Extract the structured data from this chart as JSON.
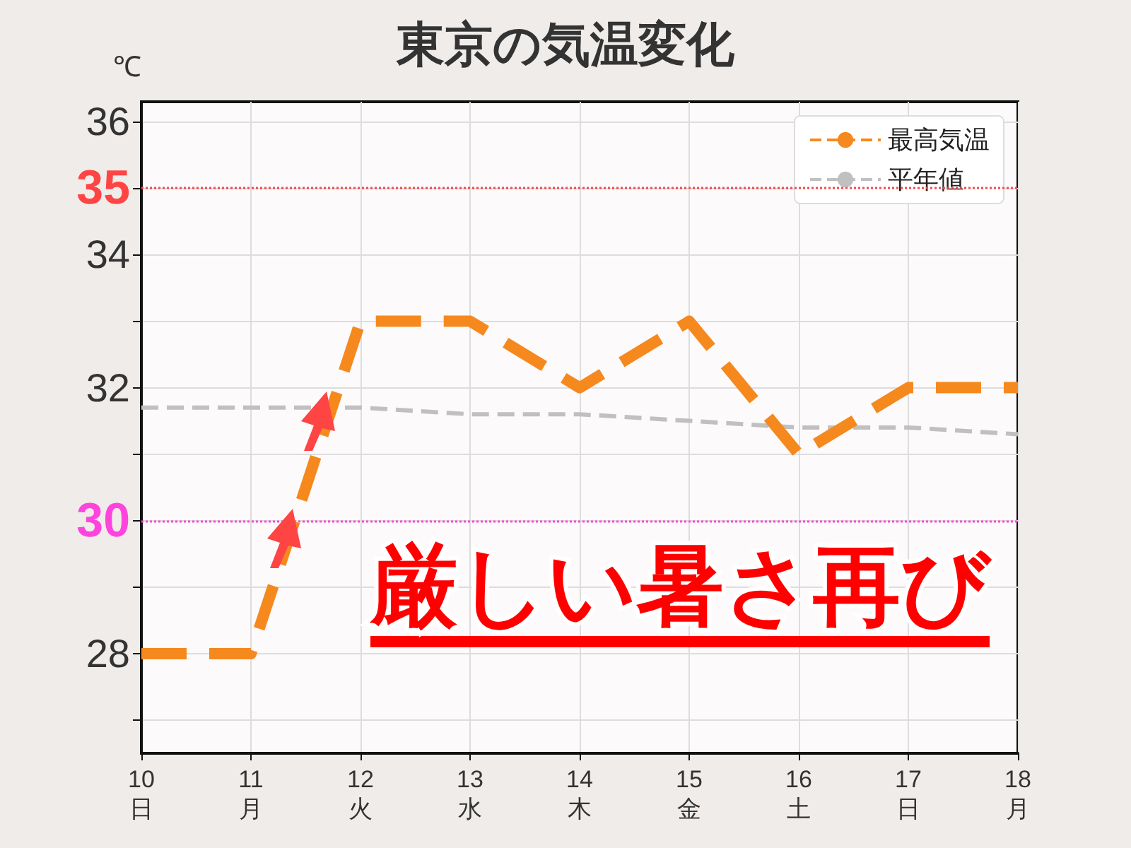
{
  "chart_data": {
    "type": "line",
    "title": "東京の気温変化",
    "ylabel": "℃",
    "categories": [
      "10\n日",
      "11\n月",
      "12\n火",
      "13\n水",
      "14\n木",
      "15\n金",
      "16\n土",
      "17\n日",
      "18\n月"
    ],
    "series": [
      {
        "name": "最高気温",
        "color": "#f5891e",
        "line_style": "dashed",
        "values": [
          28,
          28,
          33,
          33,
          32,
          33,
          31,
          32,
          32
        ]
      },
      {
        "name": "平年値",
        "color": "#c0c0c0",
        "line_style": "dashed",
        "values": [
          31.7,
          31.7,
          31.7,
          31.6,
          31.6,
          31.5,
          31.4,
          31.4,
          31.3
        ]
      }
    ],
    "ylim": [
      26.5,
      36.3
    ],
    "yticks": [
      {
        "value": 27,
        "label": null
      },
      28,
      {
        "value": 29,
        "label": null
      },
      30,
      {
        "value": 31,
        "label": null
      },
      32,
      {
        "value": 33,
        "label": null
      },
      34,
      35,
      36
    ],
    "ref_lines": [
      {
        "axis": "y",
        "value": 35,
        "color": "#ff4444",
        "line_style": "dotted"
      },
      {
        "axis": "y",
        "value": 30,
        "color": "#ff44dd",
        "line_style": "dotted"
      }
    ],
    "annotations": [
      "厳しい暑さ再び"
    ],
    "grid": true,
    "legend": "top right",
    "marker": "none"
  }
}
